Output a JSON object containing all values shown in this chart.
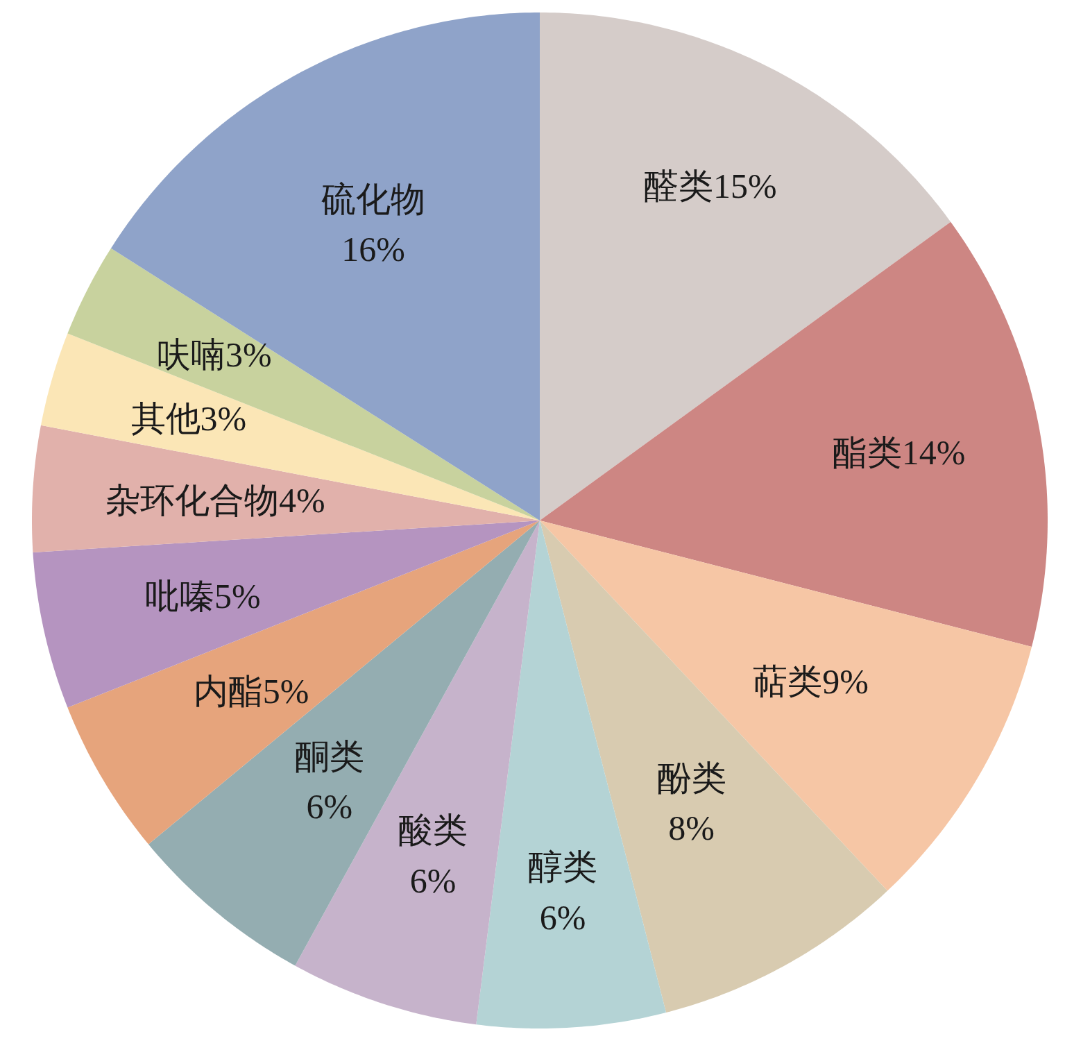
{
  "chart_data": {
    "type": "pie",
    "categories": [
      "醛类",
      "酯类",
      "萜类",
      "酚类",
      "醇类",
      "酸类",
      "酮类",
      "内酯",
      "吡嗪",
      "杂环化合物",
      "其他",
      "呋喃",
      "硫化物"
    ],
    "values": [
      15,
      14,
      9,
      8,
      6,
      6,
      6,
      5,
      5,
      4,
      3,
      3,
      16
    ],
    "value_labels": [
      "15%",
      "14%",
      "9%",
      "8%",
      "6%",
      "6%",
      "6%",
      "5%",
      "5%",
      "4%",
      "3%",
      "3%",
      "16%"
    ],
    "colors": [
      "#d5ccc9",
      "#cd8683",
      "#f6c6a5",
      "#d8cbb0",
      "#b4d3d5",
      "#c6b3cb",
      "#94adb1",
      "#e6a47c",
      "#b594c0",
      "#e1b1ab",
      "#fbe6b6",
      "#c8d29e",
      "#8fa3c9"
    ]
  }
}
